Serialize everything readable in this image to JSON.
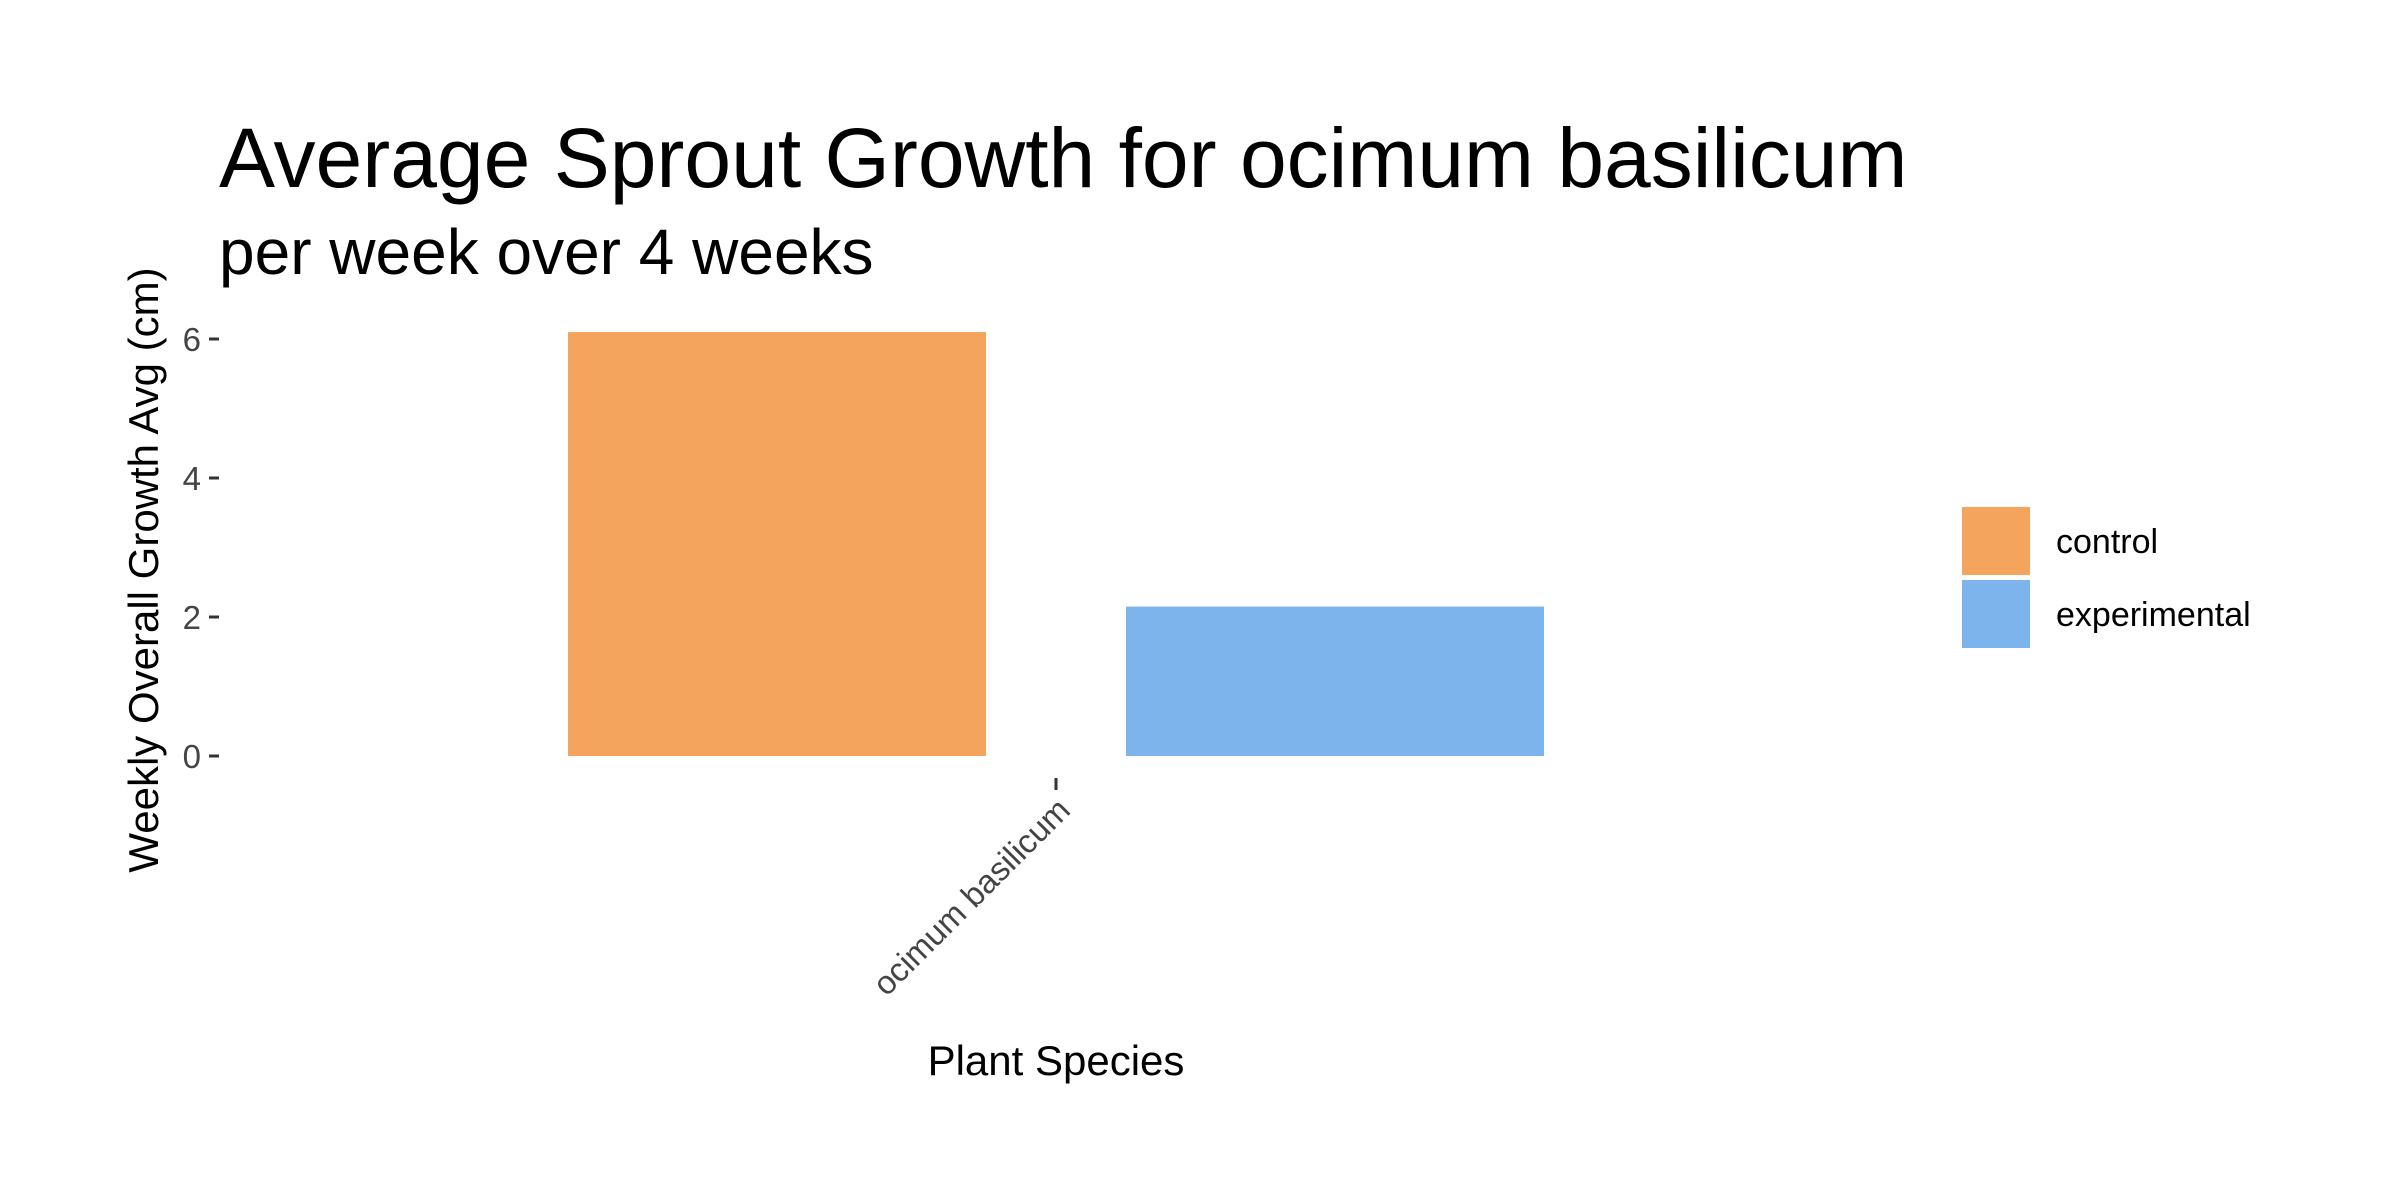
{
  "chart_data": {
    "type": "bar",
    "title": "Average Sprout Growth for ocimum basilicum",
    "subtitle": "per week over 4 weeks",
    "xlabel": "Plant Species",
    "ylabel": "Weekly Overall Growth Avg (cm)",
    "categories": [
      "ocimum basilicum"
    ],
    "series": [
      {
        "name": "control",
        "color": "#F5A45E",
        "values": [
          6.1
        ]
      },
      {
        "name": "experimental",
        "color": "#7DB4EB",
        "values": [
          2.15
        ]
      }
    ],
    "yticks": [
      0,
      2,
      4,
      6
    ],
    "ytick_labels": [
      "0",
      "2",
      "4",
      "6"
    ],
    "ylim": [
      0,
      6.3
    ],
    "grid": false,
    "legend_position": "right"
  }
}
